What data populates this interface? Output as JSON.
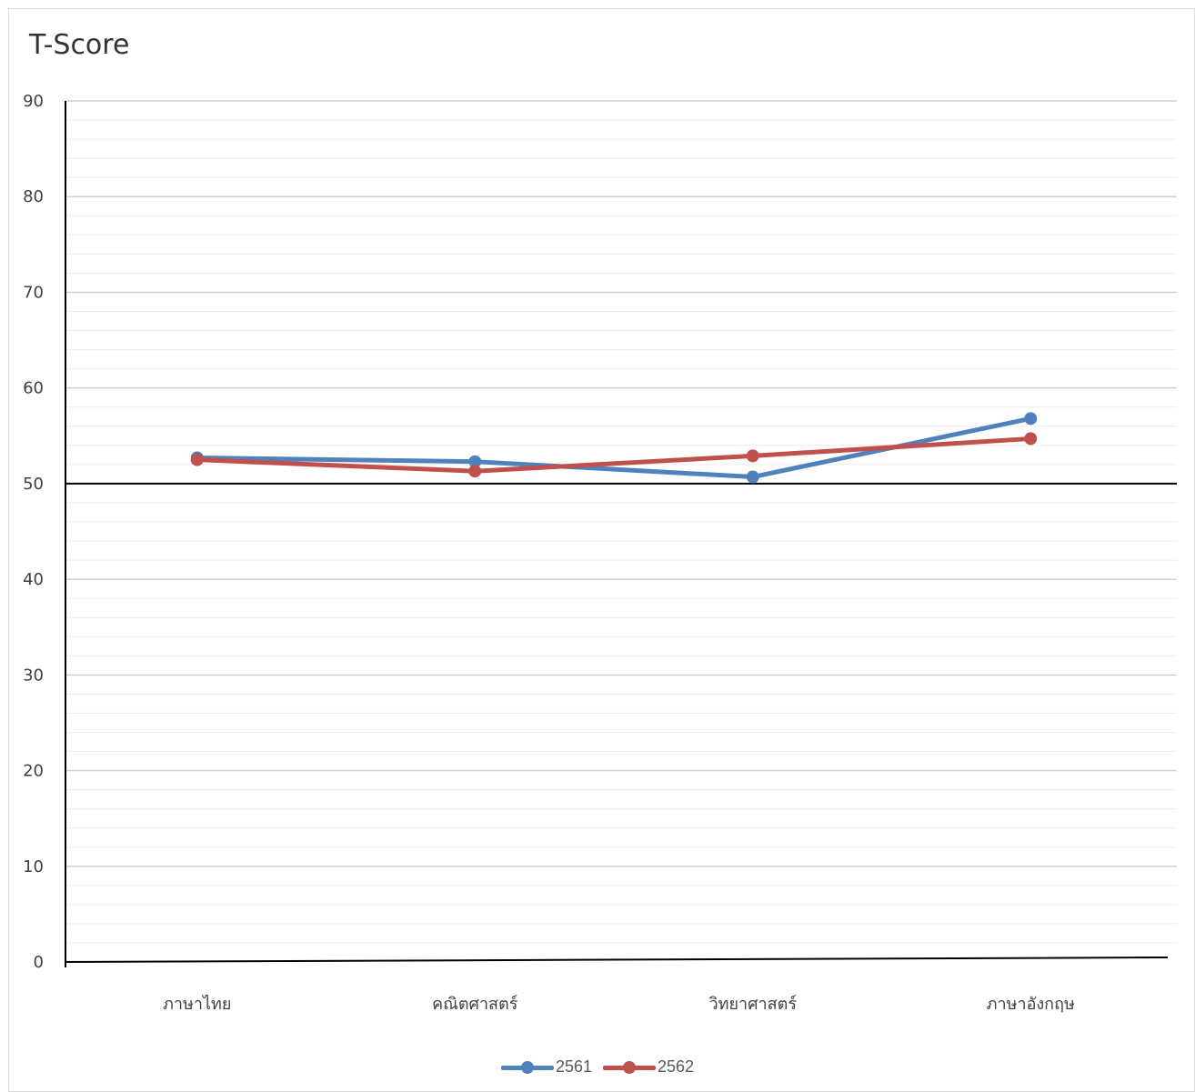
{
  "chart_data": {
    "type": "line",
    "title": "T-Score",
    "xlabel": "",
    "ylabel": "",
    "categories": [
      "ภาษาไทย",
      "คณิตศาสตร์",
      "วิทยาศาสตร์",
      "ภาษาอังกฤษ"
    ],
    "ylim": [
      0,
      90
    ],
    "y_ticks": [
      "0",
      "10",
      "20",
      "30",
      "40",
      "50",
      "60",
      "70",
      "80",
      "90"
    ],
    "reference_line": 50,
    "grid": true,
    "legend_position": "bottom",
    "series": [
      {
        "name": "2561",
        "color": "#4f81bd",
        "values": [
          52.7,
          52.3,
          50.7,
          56.8
        ]
      },
      {
        "name": "2562",
        "color": "#c0504d",
        "values": [
          52.5,
          51.3,
          52.9,
          54.7
        ]
      }
    ]
  }
}
